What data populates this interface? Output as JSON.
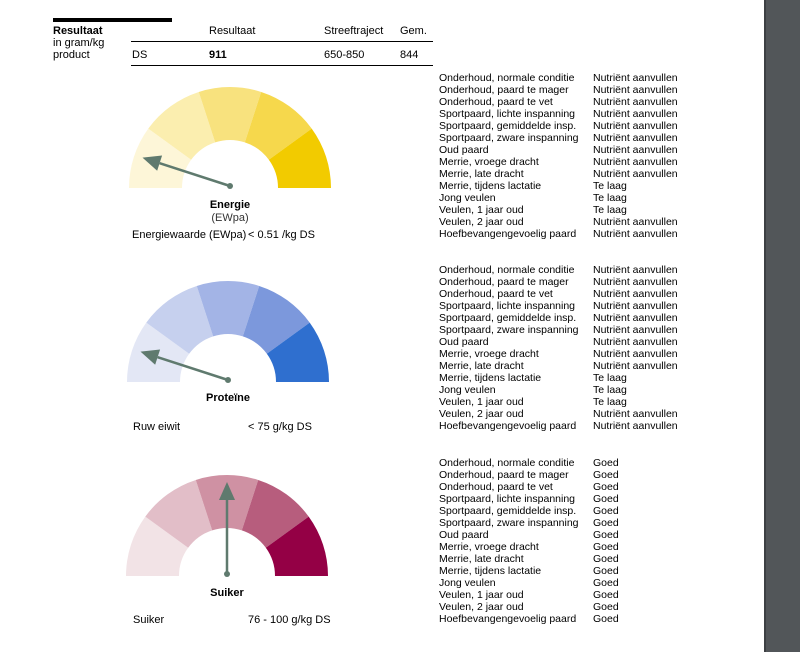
{
  "header": {
    "title": "Resultaat",
    "subtitle_lines": [
      "in gram/kg",
      "product"
    ],
    "col_result": "Resultaat",
    "col_target": "Streeftraject",
    "col_avg": "Gem.",
    "row_label": "DS",
    "row_result": "911",
    "row_target": "650-850",
    "row_avg": "844"
  },
  "gauges": [
    {
      "name": "Energie",
      "subtitle": "(EWpa)",
      "measure_label": "Energiewaarde (EWpa)",
      "measure_value": "< 0.51 /kg DS",
      "level_segment": 1,
      "segments": 5,
      "colors": [
        "#fdf6d8",
        "#fbeeaf",
        "#f8e27e",
        "#f6d84c",
        "#f2cb00"
      ],
      "needle_color": "#5f7a6e"
    },
    {
      "name": "Proteïne",
      "subtitle": "",
      "measure_label": "Ruw eiwit",
      "measure_value": "< 75 g/kg DS",
      "level_segment": 1,
      "segments": 5,
      "colors": [
        "#e3e7f5",
        "#c6d0ee",
        "#a3b4e6",
        "#7c98dc",
        "#2f6fcf"
      ],
      "needle_color": "#5f7a6e"
    },
    {
      "name": "Suiker",
      "subtitle": "",
      "measure_label": "Suiker",
      "measure_value": "76 - 100 g/kg DS",
      "level_segment": 3,
      "segments": 5,
      "colors": [
        "#f2e3e6",
        "#e2bec8",
        "#cf91a3",
        "#b75d7d",
        "#940045"
      ],
      "needle_color": "#5f7a6e"
    }
  ],
  "status_lists": [
    {
      "rows": [
        {
          "label": "Onderhoud, normale conditie",
          "value": "Nutriënt aanvullen"
        },
        {
          "label": "Onderhoud, paard te mager",
          "value": "Nutriënt aanvullen"
        },
        {
          "label": "Onderhoud, paard te vet",
          "value": "Nutriënt aanvullen"
        },
        {
          "label": "Sportpaard, lichte inspanning",
          "value": "Nutriënt aanvullen"
        },
        {
          "label": "Sportpaard, gemiddelde insp.",
          "value": "Nutriënt aanvullen"
        },
        {
          "label": "Sportpaard, zware inspanning",
          "value": "Nutriënt aanvullen"
        },
        {
          "label": "Oud paard",
          "value": "Nutriënt aanvullen"
        },
        {
          "label": "Merrie, vroege dracht",
          "value": "Nutriënt aanvullen"
        },
        {
          "label": "Merrie, late dracht",
          "value": "Nutriënt aanvullen"
        },
        {
          "label": "Merrie, tijdens lactatie",
          "value": "Te laag"
        },
        {
          "label": "Jong veulen",
          "value": "Te laag"
        },
        {
          "label": "Veulen, 1 jaar oud",
          "value": "Te laag"
        },
        {
          "label": "Veulen, 2 jaar oud",
          "value": "Nutriënt aanvullen"
        },
        {
          "label": "Hoefbevangengevoelig paard",
          "value": "Nutriënt aanvullen"
        }
      ]
    },
    {
      "rows": [
        {
          "label": "Onderhoud, normale conditie",
          "value": "Nutriënt aanvullen"
        },
        {
          "label": "Onderhoud, paard te mager",
          "value": "Nutriënt aanvullen"
        },
        {
          "label": "Onderhoud, paard te vet",
          "value": "Nutriënt aanvullen"
        },
        {
          "label": "Sportpaard, lichte inspanning",
          "value": "Nutriënt aanvullen"
        },
        {
          "label": "Sportpaard, gemiddelde insp.",
          "value": "Nutriënt aanvullen"
        },
        {
          "label": "Sportpaard, zware inspanning",
          "value": "Nutriënt aanvullen"
        },
        {
          "label": "Oud paard",
          "value": "Nutriënt aanvullen"
        },
        {
          "label": "Merrie, vroege dracht",
          "value": "Nutriënt aanvullen"
        },
        {
          "label": "Merrie, late dracht",
          "value": "Nutriënt aanvullen"
        },
        {
          "label": "Merrie, tijdens lactatie",
          "value": "Te laag"
        },
        {
          "label": "Jong veulen",
          "value": "Te laag"
        },
        {
          "label": "Veulen, 1 jaar oud",
          "value": "Te laag"
        },
        {
          "label": "Veulen, 2 jaar oud",
          "value": "Nutriënt aanvullen"
        },
        {
          "label": "Hoefbevangengevoelig paard",
          "value": "Nutriënt aanvullen"
        }
      ]
    },
    {
      "rows": [
        {
          "label": "Onderhoud, normale conditie",
          "value": "Goed"
        },
        {
          "label": "Onderhoud, paard te mager",
          "value": "Goed"
        },
        {
          "label": "Onderhoud, paard te vet",
          "value": "Goed"
        },
        {
          "label": "Sportpaard, lichte inspanning",
          "value": "Goed"
        },
        {
          "label": "Sportpaard, gemiddelde insp.",
          "value": "Goed"
        },
        {
          "label": "Sportpaard, zware inspanning",
          "value": "Goed"
        },
        {
          "label": "Oud paard",
          "value": "Goed"
        },
        {
          "label": "Merrie, vroege dracht",
          "value": "Goed"
        },
        {
          "label": "Merrie, late dracht",
          "value": "Goed"
        },
        {
          "label": "Merrie, tijdens lactatie",
          "value": "Goed"
        },
        {
          "label": "Jong veulen",
          "value": "Goed"
        },
        {
          "label": "Veulen, 1 jaar oud",
          "value": "Goed"
        },
        {
          "label": "Veulen, 2 jaar oud",
          "value": "Goed"
        },
        {
          "label": "Hoefbevangengevoelig paard",
          "value": "Goed"
        }
      ]
    }
  ]
}
